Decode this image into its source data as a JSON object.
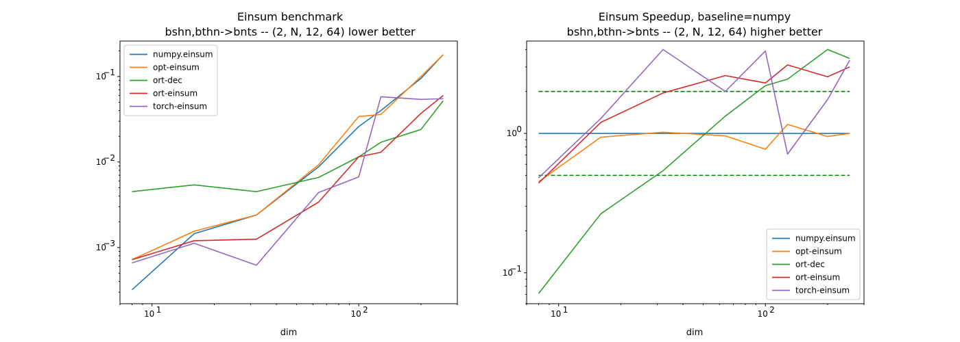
{
  "chart_data": [
    {
      "type": "line",
      "title": "Einsum benchmark",
      "subtitle": "bshn,bthn->bnts -- (2, N, 12, 64) lower better",
      "xlabel": "dim",
      "ylabel": "",
      "xscale": "log",
      "yscale": "log",
      "xlim": [
        7,
        300
      ],
      "ylim": [
        0.00022,
        0.26
      ],
      "x_ticks": [
        {
          "value": 10,
          "base": "10",
          "exp": "1"
        },
        {
          "value": 100,
          "base": "10",
          "exp": "2"
        }
      ],
      "y_ticks": [
        {
          "value": 0.001,
          "base": "10",
          "exp": "−3"
        },
        {
          "value": 0.01,
          "base": "10",
          "exp": "−2"
        },
        {
          "value": 0.1,
          "base": "10",
          "exp": "−1"
        }
      ],
      "legend": "upper-left",
      "grid": false,
      "x": [
        8,
        16,
        32,
        64,
        100,
        128,
        200,
        256
      ],
      "series": [
        {
          "name": "numpy.einsum",
          "color": "#1f77b4",
          "values": [
            0.00032,
            0.00145,
            0.0024,
            0.0088,
            0.026,
            0.04,
            0.095,
            0.18
          ]
        },
        {
          "name": "opt-einsum",
          "color": "#ff7f0e",
          "values": [
            0.00072,
            0.00155,
            0.0024,
            0.0093,
            0.034,
            0.036,
            0.1,
            0.18
          ]
        },
        {
          "name": "ort-dec",
          "color": "#2ca02c",
          "values": [
            0.0045,
            0.0054,
            0.0045,
            0.0066,
            0.0115,
            0.017,
            0.024,
            0.052
          ]
        },
        {
          "name": "ort-einsum",
          "color": "#d62728",
          "values": [
            0.00072,
            0.0012,
            0.00125,
            0.0034,
            0.0115,
            0.013,
            0.037,
            0.06
          ]
        },
        {
          "name": "torch-einsum",
          "color": "#9467bd",
          "values": [
            0.00066,
            0.00112,
            0.00062,
            0.0044,
            0.0067,
            0.058,
            0.054,
            0.055
          ]
        }
      ],
      "hlines": []
    },
    {
      "type": "line",
      "title": "Einsum Speedup, baseline=numpy",
      "subtitle": "bshn,bthn->bnts -- (2, N, 12, 64) higher better",
      "xlabel": "dim",
      "ylabel": "",
      "xscale": "log",
      "yscale": "log",
      "xlim": [
        7,
        300
      ],
      "ylim": [
        0.06,
        4.6
      ],
      "x_ticks": [
        {
          "value": 10,
          "base": "10",
          "exp": "1"
        },
        {
          "value": 100,
          "base": "10",
          "exp": "2"
        }
      ],
      "y_ticks": [
        {
          "value": 0.1,
          "base": "10",
          "exp": "−1"
        },
        {
          "value": 1,
          "base": "10",
          "exp": "0"
        }
      ],
      "legend": "lower-right",
      "grid": false,
      "x": [
        8,
        16,
        32,
        64,
        100,
        128,
        200,
        256
      ],
      "series": [
        {
          "name": "numpy.einsum",
          "color": "#1f77b4",
          "values": [
            1,
            1,
            1,
            1,
            1,
            1,
            1,
            1
          ]
        },
        {
          "name": "opt-einsum",
          "color": "#ff7f0e",
          "values": [
            0.45,
            0.94,
            1.02,
            0.96,
            0.77,
            1.16,
            0.95,
            1.0
          ]
        },
        {
          "name": "ort-dec",
          "color": "#2ca02c",
          "values": [
            0.071,
            0.265,
            0.54,
            1.33,
            2.2,
            2.45,
            4.0,
            3.45
          ]
        },
        {
          "name": "ort-einsum",
          "color": "#d62728",
          "values": [
            0.44,
            1.2,
            1.95,
            2.6,
            2.3,
            3.1,
            2.55,
            3.0
          ]
        },
        {
          "name": "torch-einsum",
          "color": "#9467bd",
          "values": [
            0.48,
            1.28,
            4.0,
            2.0,
            3.9,
            0.71,
            1.75,
            3.35
          ]
        }
      ],
      "hlines": [
        {
          "value": 2,
          "color": "#008000",
          "style": "dashed"
        },
        {
          "value": 0.5,
          "color": "#008000",
          "style": "dashed"
        }
      ]
    }
  ]
}
